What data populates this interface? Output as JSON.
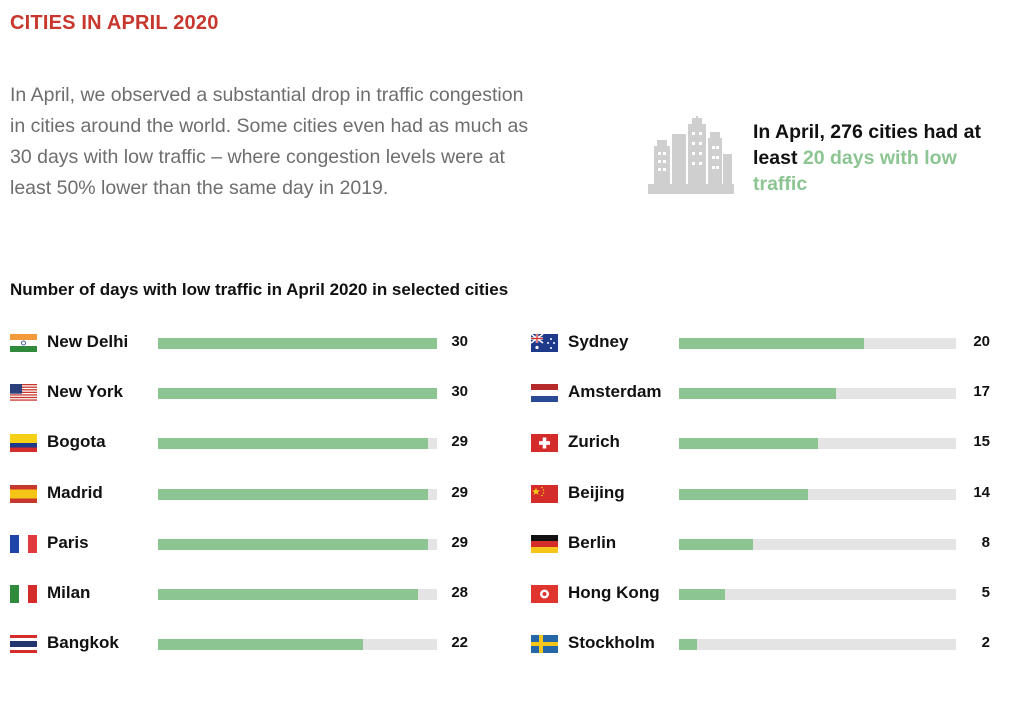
{
  "header": {
    "title": "CITIES IN APRIL 2020",
    "intro": "In April, we observed a substantial drop in traffic congestion in cities around the world. Some cities even had as much as 30 days with low traffic – where congestion levels were at least 50% lower than the same day in 2019."
  },
  "callout": {
    "text_before": "In April, 276 cities had at least ",
    "highlight": "20 days with low traffic",
    "icon": "city-skyline-icon"
  },
  "colors": {
    "title": "#c8372d",
    "bar_fill": "#8cc592",
    "bar_track": "#e4e4e4",
    "highlight": "#8cc592"
  },
  "chart_data": {
    "type": "bar",
    "orientation": "horizontal",
    "title": "Number of days with low traffic in April 2020 in selected cities",
    "xlim": [
      0,
      30
    ],
    "grid": false,
    "categories": [
      "New Delhi",
      "New York",
      "Bogota",
      "Madrid",
      "Paris",
      "Milan",
      "Bangkok",
      "Sydney",
      "Amsterdam",
      "Zurich",
      "Beijing",
      "Berlin",
      "Hong Kong",
      "Stockholm"
    ],
    "values": [
      30,
      30,
      29,
      29,
      29,
      28,
      22,
      20,
      17,
      15,
      14,
      8,
      5,
      2
    ],
    "flags": [
      "india",
      "usa",
      "colombia",
      "spain",
      "france",
      "italy",
      "thailand",
      "australia",
      "netherlands",
      "switzerland",
      "china",
      "germany",
      "hong-kong",
      "sweden"
    ]
  }
}
